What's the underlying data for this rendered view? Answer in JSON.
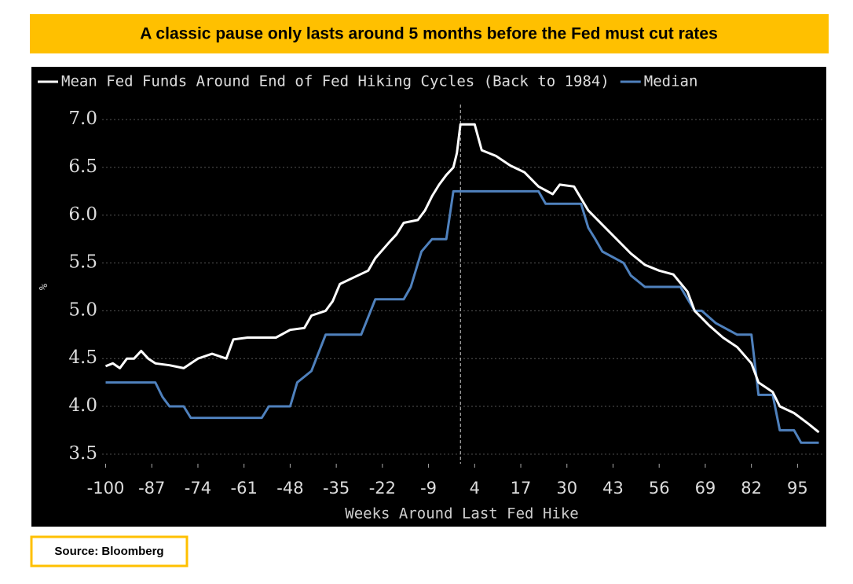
{
  "header": {
    "title": "A classic pause only lasts around 5 months before the Fed must cut rates"
  },
  "chart_data": {
    "type": "line",
    "xlabel": "Weeks Around Last Fed Hike",
    "ylabel": "%",
    "xlim": [
      -101,
      102
    ],
    "ylim": [
      3.4,
      7.1
    ],
    "xticks": [
      -100,
      -87,
      -74,
      -61,
      -48,
      -35,
      -22,
      -9,
      4,
      17,
      30,
      43,
      56,
      69,
      82,
      95
    ],
    "yticks": [
      {
        "value": 3.5,
        "label": "3.5"
      },
      {
        "value": 4,
        "label": "4.0"
      },
      {
        "value": 4.5,
        "label": "4.5"
      },
      {
        "value": 5,
        "label": "5.0"
      },
      {
        "value": 5.5,
        "label": "5.5"
      },
      {
        "value": 6,
        "label": "6.0"
      },
      {
        "value": 6.5,
        "label": "6.5"
      },
      {
        "value": 7,
        "label": "7.0"
      }
    ],
    "grid": true,
    "marker_x": 0,
    "series": [
      {
        "name": "Mean Fed Funds Around End of Fed Hiking Cycles (Back to 1984)",
        "color": "#ffffff",
        "x": [
          -100,
          -98,
          -96,
          -94,
          -92,
          -90,
          -88,
          -86,
          -82,
          -78,
          -74,
          -70,
          -66,
          -64,
          -60,
          -56,
          -52,
          -48,
          -44,
          -42,
          -38,
          -36,
          -34,
          -30,
          -26,
          -24,
          -20,
          -18,
          -16,
          -12,
          -10,
          -8,
          -6,
          -4,
          -2,
          -1,
          0,
          4,
          6,
          10,
          14,
          18,
          22,
          26,
          28,
          32,
          36,
          40,
          44,
          48,
          52,
          56,
          60,
          64,
          66,
          70,
          74,
          78,
          82,
          84,
          88,
          90,
          94,
          98,
          101
        ],
        "values": [
          4.42,
          4.45,
          4.4,
          4.5,
          4.5,
          4.58,
          4.5,
          4.45,
          4.43,
          4.4,
          4.5,
          4.55,
          4.5,
          4.7,
          4.72,
          4.72,
          4.72,
          4.8,
          4.82,
          4.95,
          5.0,
          5.1,
          5.28,
          5.35,
          5.42,
          5.55,
          5.72,
          5.8,
          5.92,
          5.95,
          6.05,
          6.2,
          6.32,
          6.42,
          6.5,
          6.65,
          6.95,
          6.95,
          6.68,
          6.62,
          6.52,
          6.45,
          6.3,
          6.22,
          6.32,
          6.3,
          6.05,
          5.9,
          5.75,
          5.6,
          5.48,
          5.42,
          5.38,
          5.2,
          5.0,
          4.85,
          4.72,
          4.62,
          4.45,
          4.25,
          4.15,
          4.0,
          3.93,
          3.82,
          3.73
        ]
      },
      {
        "name": "Median",
        "color": "#4f81bd",
        "x": [
          -100,
          -86,
          -84,
          -82,
          -78,
          -76,
          -56,
          -54,
          -48,
          -46,
          -42,
          -38,
          -28,
          -24,
          -16,
          -14,
          -11,
          -8,
          -4,
          -2,
          22,
          24,
          34,
          36,
          38,
          40,
          46,
          48,
          52,
          62,
          66,
          68,
          72,
          78,
          82,
          84,
          88,
          90,
          94,
          96,
          101
        ],
        "values": [
          4.25,
          4.25,
          4.1,
          4.0,
          4.0,
          3.88,
          3.88,
          4.0,
          4.0,
          4.25,
          4.37,
          4.75,
          4.75,
          5.12,
          5.12,
          5.25,
          5.62,
          5.75,
          5.75,
          6.25,
          6.25,
          6.12,
          6.12,
          5.87,
          5.75,
          5.62,
          5.5,
          5.37,
          5.25,
          5.25,
          5.0,
          5.0,
          4.87,
          4.75,
          4.75,
          4.12,
          4.12,
          3.75,
          3.75,
          3.62,
          3.62
        ]
      }
    ]
  },
  "footer": {
    "source": "Source: Bloomberg"
  }
}
